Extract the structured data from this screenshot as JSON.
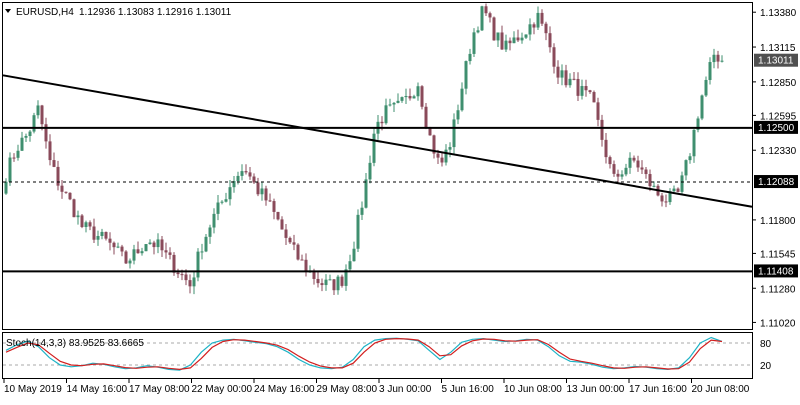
{
  "header": {
    "symbol_timeframe": "EURUSD,H4",
    "ohlc": "1.12936 1.13083 1.12916 1.13011"
  },
  "stoch_header": "Stoch(14,3,3) 83.9525 83.6665",
  "colors": {
    "bull": "#3f8f6f",
    "bear": "#8a4a5a",
    "trend": "#000000",
    "level": "#000000",
    "stoch_main": "#1eb3c6",
    "stoch_signal": "#d21e1e",
    "label_bg": "#000000",
    "label_text": "#ffffff"
  },
  "chart_data": [
    {
      "type": "candlestick",
      "title": "EURUSD,H4",
      "ylim": [
        1.1097,
        1.1345
      ],
      "y_ticks": [
        "1.13380",
        "1.13115",
        "1.12850",
        "1.12595",
        "1.12330",
        "1.11800",
        "1.11545",
        "1.11280",
        "1.11020"
      ],
      "x_tick_labels": [
        "10 May 2019",
        "14 May 16:00",
        "17 May 08:00",
        "22 May 00:00",
        "24 May 16:00",
        "29 May 08:00",
        "3 Jun 00:00",
        "5 Jun 16:00",
        "10 Jun 08:00",
        "13 Jun 00:00",
        "17 Jun 16:00",
        "20 Jun 08:00"
      ],
      "price_labels": [
        "1.13011",
        "1.12500",
        "1.12088",
        "1.11408"
      ],
      "key_points": [
        1.1215,
        1.1235,
        1.1245,
        1.1265,
        1.1225,
        1.1205,
        1.1192,
        1.1175,
        1.117,
        1.1165,
        1.1158,
        1.1148,
        1.1155,
        1.1165,
        1.116,
        1.115,
        1.114,
        1.113,
        1.116,
        1.118,
        1.1195,
        1.1212,
        1.122,
        1.1205,
        1.1195,
        1.118,
        1.1163,
        1.115,
        1.114,
        1.1132,
        1.113,
        1.1135,
        1.116,
        1.12,
        1.125,
        1.1262,
        1.1265,
        1.1272,
        1.1285,
        1.1245,
        1.122,
        1.124,
        1.128,
        1.132,
        1.134,
        1.1322,
        1.131,
        1.1318,
        1.1325,
        1.1335,
        1.1315,
        1.129,
        1.1285,
        1.1278,
        1.127,
        1.124,
        1.121,
        1.122,
        1.1225,
        1.1212,
        1.12,
        1.1195,
        1.12,
        1.123,
        1.127,
        1.13,
        1.1301
      ],
      "levels": [
        {
          "value": 1.125,
          "style": "solid"
        },
        {
          "value": 1.12088,
          "style": "dotted"
        },
        {
          "value": 1.11408,
          "style": "solid"
        }
      ],
      "trendline": {
        "from": 1.129,
        "to": 1.119
      }
    },
    {
      "type": "line",
      "title": "Stoch(14,3,3) 83.9525 83.6665",
      "ylim": [
        0,
        100
      ],
      "y_ticks": [
        "80",
        "20"
      ],
      "series": [
        {
          "name": "main",
          "values": [
            60,
            75,
            85,
            70,
            40,
            20,
            15,
            18,
            25,
            22,
            15,
            10,
            12,
            18,
            14,
            8,
            6,
            20,
            55,
            80,
            88,
            90,
            86,
            82,
            78,
            70,
            55,
            35,
            20,
            12,
            10,
            14,
            35,
            70,
            88,
            92,
            93,
            90,
            86,
            60,
            35,
            55,
            82,
            90,
            92,
            88,
            84,
            86,
            90,
            88,
            70,
            45,
            30,
            28,
            22,
            14,
            10,
            12,
            16,
            14,
            10,
            8,
            12,
            40,
            80,
            95,
            84
          ]
        },
        {
          "name": "signal",
          "values": [
            55,
            68,
            80,
            75,
            52,
            30,
            20,
            18,
            22,
            23,
            18,
            13,
            11,
            14,
            15,
            11,
            8,
            12,
            38,
            68,
            84,
            89,
            88,
            84,
            80,
            74,
            62,
            44,
            28,
            17,
            12,
            12,
            25,
            55,
            80,
            90,
            92,
            91,
            88,
            70,
            45,
            48,
            72,
            86,
            91,
            90,
            86,
            85,
            88,
            89,
            76,
            55,
            36,
            30,
            25,
            18,
            12,
            11,
            14,
            15,
            12,
            9,
            10,
            28,
            65,
            88,
            84
          ]
        }
      ]
    }
  ]
}
